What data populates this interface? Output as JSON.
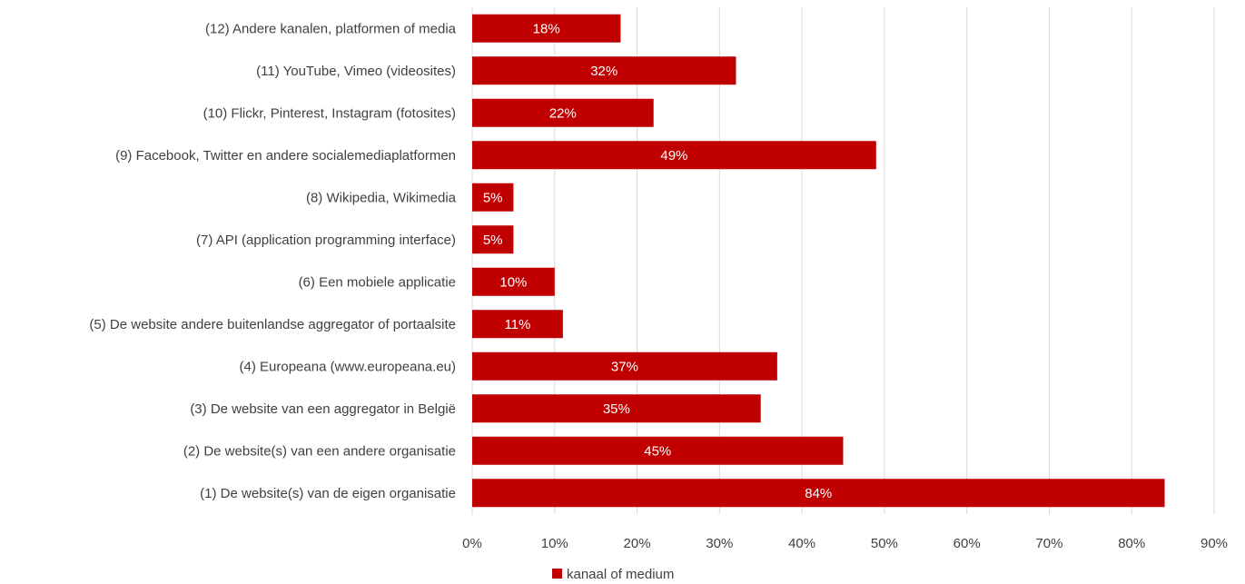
{
  "chart_data": {
    "type": "bar",
    "orientation": "horizontal",
    "categories": [
      "(12) Andere kanalen, platformen of media",
      "(11) YouTube, Vimeo (videosites)",
      "(10) Flickr, Pinterest, Instagram (fotosites)",
      "(9) Facebook, Twitter en andere socialemediaplatformen",
      "(8) Wikipedia, Wikimedia",
      "(7) API (application programming interface)",
      "(6) Een mobiele applicatie",
      "(5) De website andere buitenlandse aggregator of portaalsite",
      "(4) Europeana (www.europeana.eu)",
      "(3) De website van een aggregator in België",
      "(2) De website(s) van een andere organisatie",
      "(1) De website(s) van de eigen organisatie"
    ],
    "series": [
      {
        "name": "kanaal of medium",
        "values": [
          18,
          32,
          22,
          49,
          5,
          5,
          10,
          11,
          37,
          35,
          45,
          84
        ],
        "labels": [
          "18%",
          "32%",
          "22%",
          "49%",
          "5%",
          "5%",
          "10%",
          "11%",
          "37%",
          "35%",
          "45%",
          "84%"
        ],
        "color": "#c00000"
      }
    ],
    "xlim": [
      0,
      90
    ],
    "x_ticks": [
      0,
      10,
      20,
      30,
      40,
      50,
      60,
      70,
      80,
      90
    ],
    "x_tick_labels": [
      "0%",
      "10%",
      "20%",
      "30%",
      "40%",
      "50%",
      "60%",
      "70%",
      "80%",
      "90%"
    ],
    "grid": "vertical",
    "grid_color": "#d9d9d9",
    "legend_position": "bottom",
    "title": "",
    "xlabel": "",
    "ylabel": ""
  }
}
